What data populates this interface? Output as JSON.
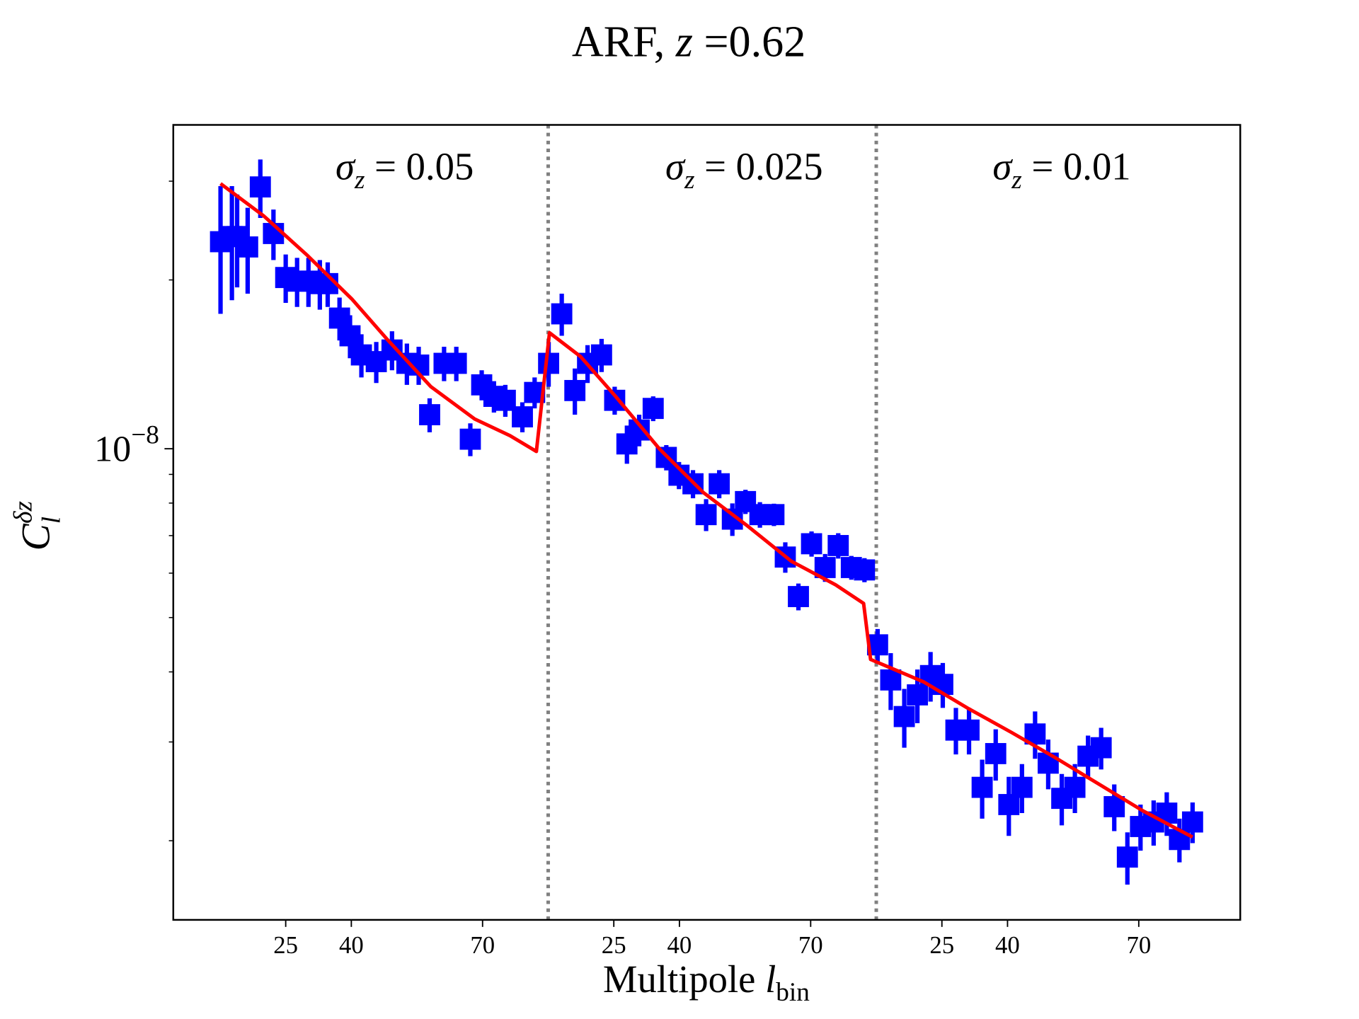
{
  "chart_data": {
    "type": "scatter",
    "title": {
      "prefix": "ARF, ",
      "var": "z",
      "suffix": " =0.62"
    },
    "xlabel": {
      "text": "Multipole ",
      "var": "l",
      "sub": "bin"
    },
    "ylabel": {
      "base": "C",
      "sub": "l",
      "sup": "δz"
    },
    "xlim": [
      -0.7,
      243.2
    ],
    "ylim": [
      1.445e-09,
      3.78e-08
    ],
    "log_y": true,
    "xticks": [
      25,
      40,
      70,
      {
        "value": 100,
        "label": "25"
      },
      {
        "value": 115,
        "label": "40"
      },
      {
        "value": 145,
        "label": "70"
      },
      {
        "value": 175,
        "label": "25"
      },
      {
        "value": 190,
        "label": "40"
      },
      {
        "value": 220,
        "label": "70"
      }
    ],
    "yticks": [
      {
        "value": 1e-08,
        "label": "10",
        "exponent": "−8"
      }
    ],
    "yminor": [
      2e-09,
      3e-09,
      4e-09,
      5e-09,
      6e-09,
      7e-09,
      8e-09,
      9e-09,
      2e-08,
      3e-08
    ],
    "vlines": {
      "x": [
        85,
        160
      ],
      "color": "#808080"
    },
    "annotations": [
      {
        "symbol": "σ",
        "sub": "z",
        "text": " = 0.05"
      },
      {
        "symbol": "σ",
        "sub": "z",
        "text": " = 0.025"
      },
      {
        "symbol": "σ",
        "sub": "z",
        "text": " = 0.01"
      }
    ],
    "series": [
      {
        "kind": "errorbar",
        "color": "#0000ff",
        "x": [
          10.1,
          12.7,
          13.9,
          16.3,
          19.2,
          22.2,
          25.0,
          27.6,
          30.2,
          32.8,
          34.6,
          37.3,
          39.7,
          42.3,
          45.7,
          49.3,
          52.7,
          55.4,
          57.9,
          61.2,
          64.0,
          67.2,
          69.8,
          72.6,
          75.2,
          79.1,
          81.9,
          85.1,
          88.1,
          91.1,
          94.0,
          97.2,
          100.2,
          103.0,
          105.8,
          109.0,
          112.0,
          114.9,
          118.1,
          121.1,
          124.1,
          127.1,
          130.1,
          133.4,
          136.6,
          139.2,
          142.2,
          145.2,
          148.3,
          151.3,
          154.3,
          157.3,
          160.3,
          163.3,
          166.4,
          169.4,
          172.4,
          175.2,
          178.2,
          181.2,
          184.2,
          187.3,
          190.3,
          193.3,
          196.3,
          199.3,
          202.4,
          205.4,
          208.4,
          211.4,
          214.4,
          217.4,
          220.4,
          223.4,
          226.4,
          229.3,
          232.3
        ],
        "values": [
          2.34e-08,
          2.39e-08,
          2.39e-08,
          2.29e-08,
          2.93e-08,
          2.42e-08,
          2.02e-08,
          1.99e-08,
          1.99e-08,
          1.97e-08,
          1.97e-08,
          1.71e-08,
          1.59e-08,
          1.47e-08,
          1.43e-08,
          1.5e-08,
          1.42e-08,
          1.41e-08,
          1.15e-08,
          1.42e-08,
          1.42e-08,
          1.04e-08,
          1.3e-08,
          1.24e-08,
          1.22e-08,
          1.14e-08,
          1.26e-08,
          1.42e-08,
          1.74e-08,
          1.27e-08,
          1.42e-08,
          1.47e-08,
          1.22e-08,
          1.02e-08,
          1.08e-08,
          1.18e-08,
          9.65e-09,
          8.97e-09,
          8.66e-09,
          7.63e-09,
          8.66e-09,
          7.49e-09,
          8.05e-09,
          7.63e-09,
          7.63e-09,
          6.41e-09,
          5.45e-09,
          6.77e-09,
          6.14e-09,
          6.72e-09,
          6.14e-09,
          6.08e-09,
          4.47e-09,
          3.87e-09,
          3.33e-09,
          3.64e-09,
          3.94e-09,
          3.8e-09,
          3.15e-09,
          3.15e-09,
          2.49e-09,
          2.86e-09,
          2.32e-09,
          2.49e-09,
          3.1e-09,
          2.75e-09,
          2.38e-09,
          2.49e-09,
          2.83e-09,
          2.93e-09,
          2.3e-09,
          1.87e-09,
          2.12e-09,
          2.16e-09,
          2.24e-09,
          2.01e-09,
          2.16e-09
        ],
        "errors": [
          6e-09,
          5.5e-09,
          4.5e-09,
          4e-09,
          3.5e-09,
          2.5e-09,
          2e-09,
          2e-09,
          2e-09,
          2e-09,
          1.8e-09,
          1.5e-09,
          1.4e-09,
          1.3e-09,
          1.2e-09,
          1.2e-09,
          1.2e-09,
          1.1e-09,
          8e-10,
          1e-09,
          1e-09,
          7e-10,
          8e-10,
          8e-10,
          8e-10,
          7e-10,
          8e-10,
          1.3e-09,
          1.5e-09,
          1.2e-09,
          1.1e-09,
          1e-09,
          7e-10,
          8e-10,
          7e-10,
          6e-10,
          5e-10,
          5e-10,
          5e-10,
          5e-10,
          5e-10,
          5e-10,
          4e-10,
          4e-10,
          3.5e-10,
          4e-10,
          3e-10,
          3.5e-10,
          3.5e-10,
          3.5e-10,
          3e-10,
          3e-10,
          3e-10,
          4.5e-10,
          4e-10,
          4e-10,
          4e-10,
          3.5e-10,
          3e-10,
          3e-10,
          3e-10,
          3e-10,
          2.8e-10,
          2.5e-10,
          3e-10,
          2.8e-10,
          2.5e-10,
          2.5e-10,
          2.5e-10,
          2.5e-10,
          2.2e-10,
          2e-10,
          2e-10,
          2e-10,
          2e-10,
          1.8e-10,
          1.8e-10
        ]
      },
      {
        "kind": "line",
        "color": "#ff0000",
        "x": [
          10.1,
          20.0,
          30.0,
          40.1,
          48.1,
          58.2,
          68.2,
          76.3,
          82.3,
          85.3,
          92.4,
          100.4,
          110.4,
          120.5,
          130.6,
          140.6,
          150.7,
          157.1,
          158.7,
          170.8,
          180.8,
          190.9,
          201.0,
          211.0,
          221.0,
          232.3
        ],
        "values": [
          2.97e-08,
          2.6e-08,
          2.21e-08,
          1.85e-08,
          1.57e-08,
          1.29e-08,
          1.13e-08,
          1.055e-08,
          9.89e-09,
          1.61e-08,
          1.46e-08,
          1.24e-08,
          1e-08,
          8.35e-09,
          7.28e-09,
          6.3e-09,
          5.72e-09,
          5.3e-09,
          4.21e-09,
          3.84e-09,
          3.45e-09,
          3.12e-09,
          2.81e-09,
          2.52e-09,
          2.26e-09,
          2.03e-09
        ]
      }
    ]
  }
}
